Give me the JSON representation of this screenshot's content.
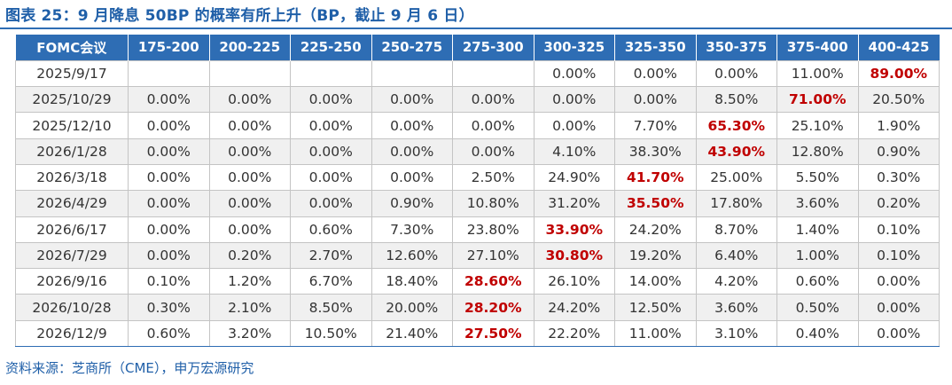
{
  "title": "图表 25：9 月降息 50BP 的概率有所上升（BP，截止 9 月 6 日）",
  "source": "资料来源：芝商所（CME），申万宏源研究",
  "table": {
    "headers": [
      "FOMC会议",
      "175-200",
      "200-225",
      "225-250",
      "250-275",
      "275-300",
      "300-325",
      "325-350",
      "350-375",
      "375-400",
      "400-425"
    ],
    "highlight_color": "#c00000",
    "rows": [
      {
        "meeting": "2025/9/17",
        "values": [
          "",
          "",
          "",
          "",
          "",
          "0.00%",
          "0.00%",
          "0.00%",
          "11.00%",
          "89.00%"
        ],
        "highlight_index": 9
      },
      {
        "meeting": "2025/10/29",
        "values": [
          "0.00%",
          "0.00%",
          "0.00%",
          "0.00%",
          "0.00%",
          "0.00%",
          "0.00%",
          "8.50%",
          "71.00%",
          "20.50%"
        ],
        "highlight_index": 8
      },
      {
        "meeting": "2025/12/10",
        "values": [
          "0.00%",
          "0.00%",
          "0.00%",
          "0.00%",
          "0.00%",
          "0.00%",
          "7.70%",
          "65.30%",
          "25.10%",
          "1.90%"
        ],
        "highlight_index": 7
      },
      {
        "meeting": "2026/1/28",
        "values": [
          "0.00%",
          "0.00%",
          "0.00%",
          "0.00%",
          "0.00%",
          "4.10%",
          "38.30%",
          "43.90%",
          "12.80%",
          "0.90%"
        ],
        "highlight_index": 7
      },
      {
        "meeting": "2026/3/18",
        "values": [
          "0.00%",
          "0.00%",
          "0.00%",
          "0.00%",
          "2.50%",
          "24.90%",
          "41.70%",
          "25.00%",
          "5.50%",
          "0.30%"
        ],
        "highlight_index": 6
      },
      {
        "meeting": "2026/4/29",
        "values": [
          "0.00%",
          "0.00%",
          "0.00%",
          "0.90%",
          "10.80%",
          "31.20%",
          "35.50%",
          "17.80%",
          "3.60%",
          "0.20%"
        ],
        "highlight_index": 6
      },
      {
        "meeting": "2026/6/17",
        "values": [
          "0.00%",
          "0.00%",
          "0.60%",
          "7.30%",
          "23.80%",
          "33.90%",
          "24.20%",
          "8.70%",
          "1.40%",
          "0.10%"
        ],
        "highlight_index": 5
      },
      {
        "meeting": "2026/7/29",
        "values": [
          "0.00%",
          "0.20%",
          "2.70%",
          "12.60%",
          "27.10%",
          "30.80%",
          "19.20%",
          "6.40%",
          "1.00%",
          "0.10%"
        ],
        "highlight_index": 5
      },
      {
        "meeting": "2026/9/16",
        "values": [
          "0.10%",
          "1.20%",
          "6.70%",
          "18.40%",
          "28.60%",
          "26.10%",
          "14.00%",
          "4.20%",
          "0.60%",
          "0.00%"
        ],
        "highlight_index": 4
      },
      {
        "meeting": "2026/10/28",
        "values": [
          "0.30%",
          "2.10%",
          "8.50%",
          "20.00%",
          "28.20%",
          "24.20%",
          "12.50%",
          "3.60%",
          "0.50%",
          "0.00%"
        ],
        "highlight_index": 4
      },
      {
        "meeting": "2026/12/9",
        "values": [
          "0.60%",
          "3.20%",
          "10.50%",
          "21.40%",
          "27.50%",
          "22.20%",
          "11.00%",
          "3.10%",
          "0.40%",
          "0.00%"
        ],
        "highlight_index": 4
      }
    ]
  }
}
